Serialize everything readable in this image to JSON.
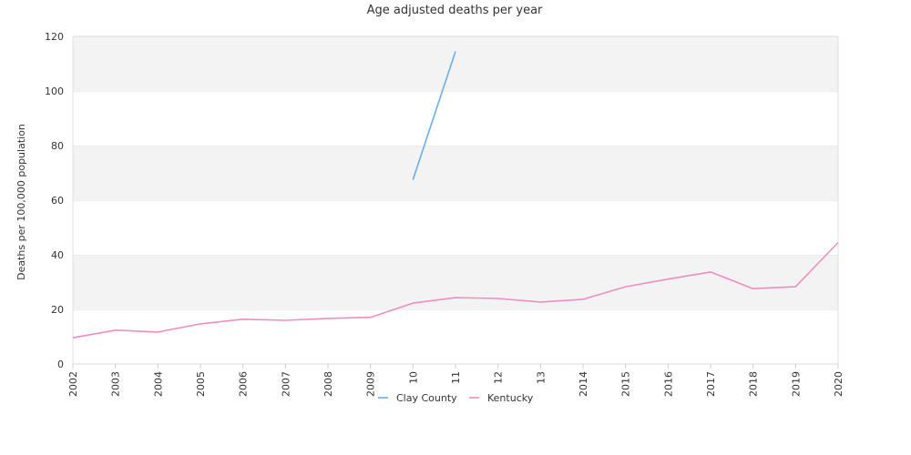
{
  "chart_data": {
    "type": "line",
    "title": "Age adjusted deaths per year",
    "xlabel": "",
    "ylabel": "Deaths per 100,000 population",
    "ylim": [
      0,
      120
    ],
    "yticks": [
      0,
      20,
      40,
      60,
      80,
      100,
      120
    ],
    "x_tick_labels": [
      "2002",
      "2003",
      "2004",
      "2005",
      "2006",
      "2007",
      "2008",
      "2009",
      "10",
      "11",
      "12",
      "13",
      "2014",
      "2015",
      "2016",
      "2017",
      "2018",
      "2019",
      "2020"
    ],
    "x": [
      2002,
      2003,
      2004,
      2005,
      2006,
      2007,
      2008,
      2009,
      2010,
      2011,
      2012,
      2013,
      2014,
      2015,
      2016,
      2017,
      2018,
      2019,
      2020
    ],
    "grid": true,
    "legend_position": "bottom",
    "series": [
      {
        "name": "Clay County",
        "color": "#6aaee6",
        "values": [
          null,
          null,
          null,
          null,
          null,
          null,
          null,
          null,
          67.5,
          114.5,
          null,
          null,
          null,
          null,
          null,
          null,
          null,
          null,
          null
        ]
      },
      {
        "name": "Kentucky",
        "color": "#f08cc0",
        "values": [
          9.6,
          12.4,
          11.7,
          14.7,
          16.4,
          16.0,
          16.7,
          17.1,
          22.3,
          24.3,
          24.0,
          22.7,
          23.7,
          28.3,
          31.1,
          33.7,
          27.6,
          28.3,
          44.5
        ]
      }
    ]
  }
}
